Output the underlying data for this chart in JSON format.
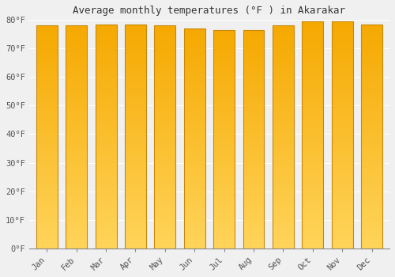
{
  "title": "Average monthly temperatures (°F ) in Akarakar",
  "months": [
    "Jan",
    "Feb",
    "Mar",
    "Apr",
    "May",
    "Jun",
    "Jul",
    "Aug",
    "Sep",
    "Oct",
    "Nov",
    "Dec"
  ],
  "values": [
    78,
    78,
    78.5,
    78.5,
    78,
    77,
    76.5,
    76.5,
    78,
    79.5,
    79.5,
    78.5
  ],
  "ylim": [
    0,
    80
  ],
  "yticks": [
    0,
    10,
    20,
    30,
    40,
    50,
    60,
    70,
    80
  ],
  "bar_color_top": "#F5A800",
  "bar_color_bottom": "#FFD45A",
  "bar_edge_color": "#C8880A",
  "background_color": "#f0f0f0",
  "grid_color": "#e0e0e0",
  "title_fontsize": 9,
  "tick_fontsize": 7.5,
  "title_font": "monospace",
  "tick_font": "monospace"
}
